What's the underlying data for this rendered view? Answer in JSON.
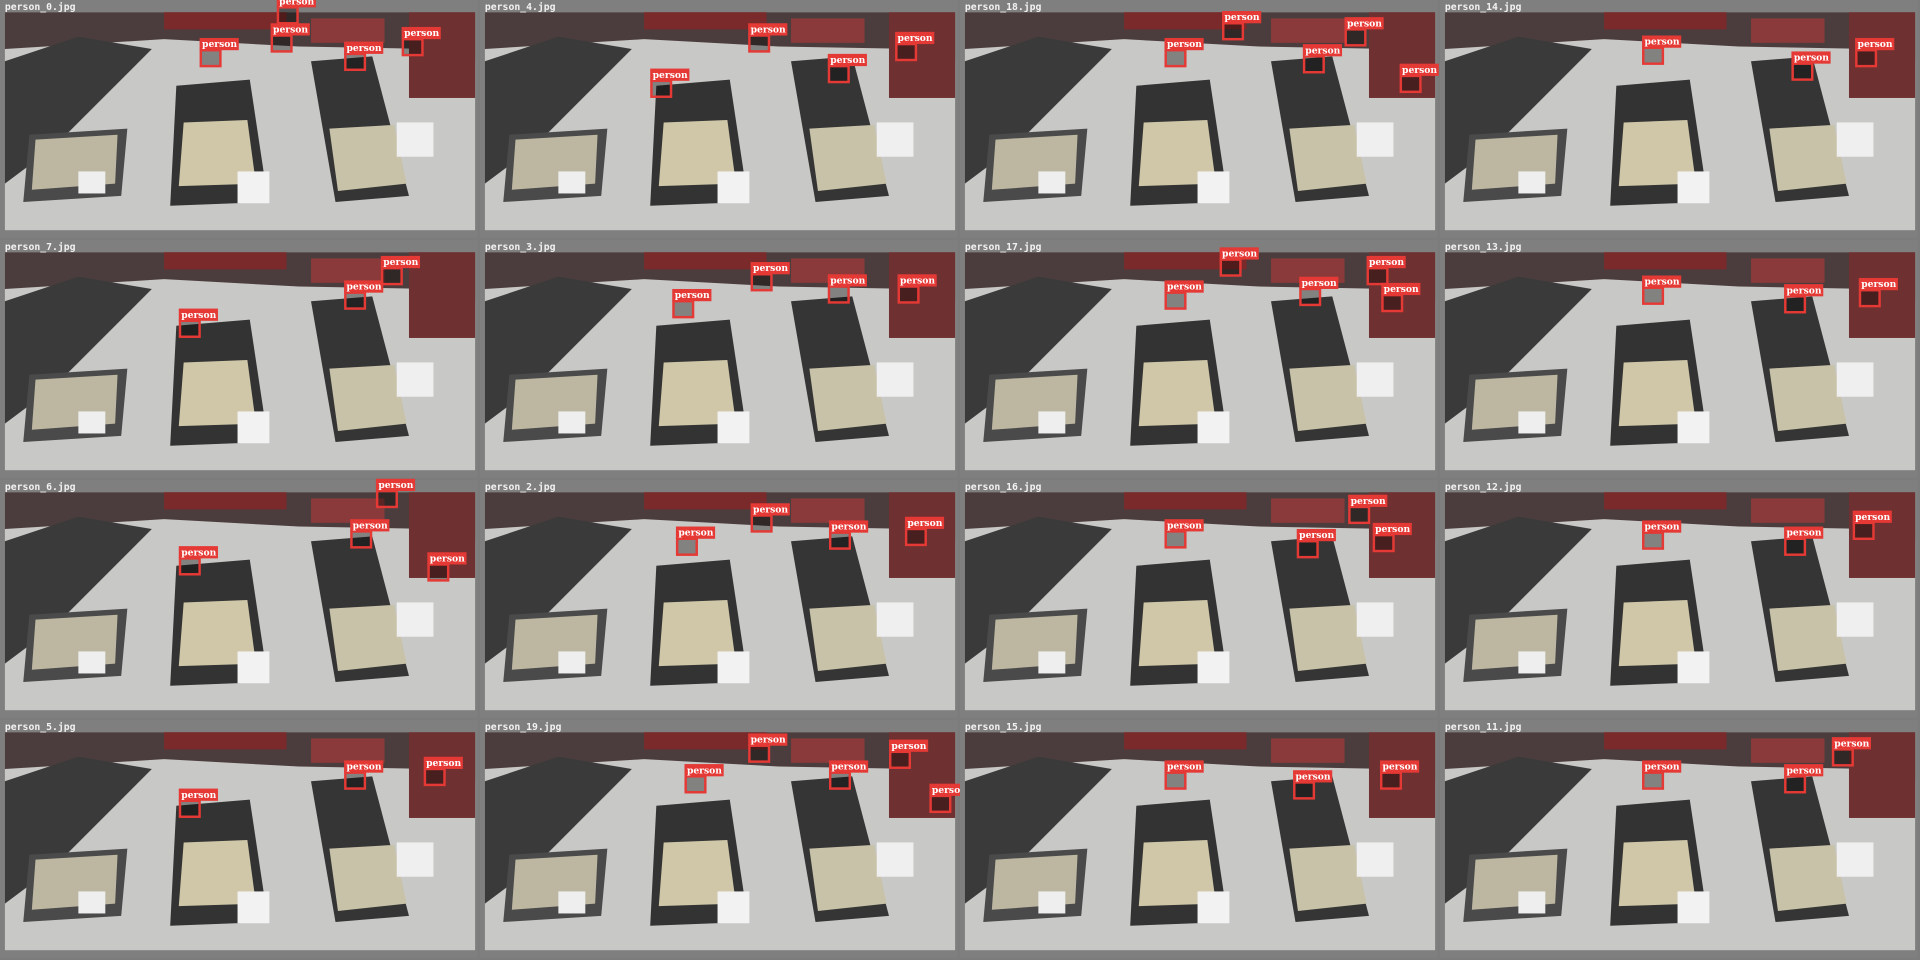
{
  "tiles": [
    {
      "filename": "person_0.jpg",
      "detections": [
        "person",
        "person",
        "person",
        "person",
        "person"
      ]
    },
    {
      "filename": "person_4.jpg",
      "detections": [
        "person",
        "person",
        "person",
        "person"
      ]
    },
    {
      "filename": "person_18.jpg",
      "detections": [
        "person",
        "person",
        "person",
        "person",
        "person"
      ]
    },
    {
      "filename": "person_14.jpg",
      "detections": [
        "person",
        "person",
        "person"
      ]
    },
    {
      "filename": "person_7.jpg",
      "detections": [
        "person",
        "person",
        "person"
      ]
    },
    {
      "filename": "person_3.jpg",
      "detections": [
        "person",
        "person",
        "person",
        "person"
      ]
    },
    {
      "filename": "person_17.jpg",
      "detections": [
        "person",
        "person",
        "person",
        "person",
        "person"
      ]
    },
    {
      "filename": "person_13.jpg",
      "detections": [
        "person",
        "person",
        "person"
      ]
    },
    {
      "filename": "person_6.jpg",
      "detections": [
        "person",
        "person",
        "person",
        "person"
      ]
    },
    {
      "filename": "person_2.jpg",
      "detections": [
        "person",
        "person",
        "person",
        "person"
      ]
    },
    {
      "filename": "person_16.jpg",
      "detections": [
        "person",
        "person",
        "person",
        "person"
      ]
    },
    {
      "filename": "person_12.jpg",
      "detections": [
        "person",
        "person",
        "person"
      ]
    },
    {
      "filename": "person_5.jpg",
      "detections": [
        "person",
        "person",
        "person"
      ]
    },
    {
      "filename": "person_19.jpg",
      "detections": [
        "person",
        "person",
        "person",
        "person",
        "person"
      ]
    },
    {
      "filename": "person_15.jpg",
      "detections": [
        "person",
        "person",
        "person"
      ]
    },
    {
      "filename": "person_11.jpg",
      "detections": [
        "person",
        "person",
        "person"
      ]
    }
  ]
}
